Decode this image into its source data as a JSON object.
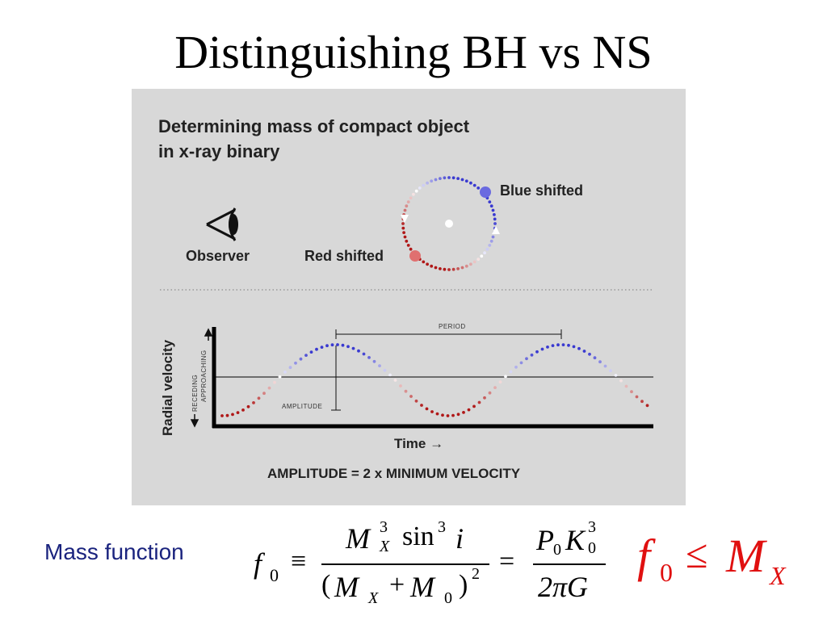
{
  "slide": {
    "title": "Distinguishing BH vs NS"
  },
  "figure": {
    "heading_line1": "Determining mass of compact object",
    "heading_line2": "in x-ray binary",
    "observer_label": "Observer",
    "blue_label": "Blue shifted",
    "red_label": "Red shifted",
    "period_label": "PERIOD",
    "amplitude_label": "AMPLITUDE",
    "y_axis_label": "Radial velocity",
    "approaching_label": "APPROACHING",
    "receding_label": "RECEDING",
    "time_label": "Time →",
    "caption": "AMPLITUDE = 2 x MINIMUM VELOCITY",
    "colors": {
      "background": "#d8d8d8",
      "blue": "#3a3ad0",
      "red": "#b01818",
      "white": "#ffffff",
      "axis": "#000000"
    }
  },
  "mass_function": {
    "label": "Mass function",
    "f": "f",
    "f_sub": "0",
    "equiv": "≡",
    "num_M": "M",
    "num_M_sup": "3",
    "num_M_sub": "X",
    "num_sin": "sin",
    "num_sin_sup": "3",
    "num_i": "i",
    "den_open": "(",
    "den_M1": "M",
    "den_M1_sub": "X",
    "den_plus": "+",
    "den_M2": "M",
    "den_M2_sub": "0",
    "den_close": ")",
    "den_sup": "2",
    "equals": "=",
    "rhs_P": "P",
    "rhs_P_sub": "0",
    "rhs_K": "K",
    "rhs_K_sup": "3",
    "rhs_K_sub": "0",
    "rhs_den": "2πG",
    "ineq_f": "f",
    "ineq_f_sub": "0",
    "ineq_le": "≤",
    "ineq_M": "M",
    "ineq_M_sub": "X",
    "ineq_color": "#e01010"
  }
}
